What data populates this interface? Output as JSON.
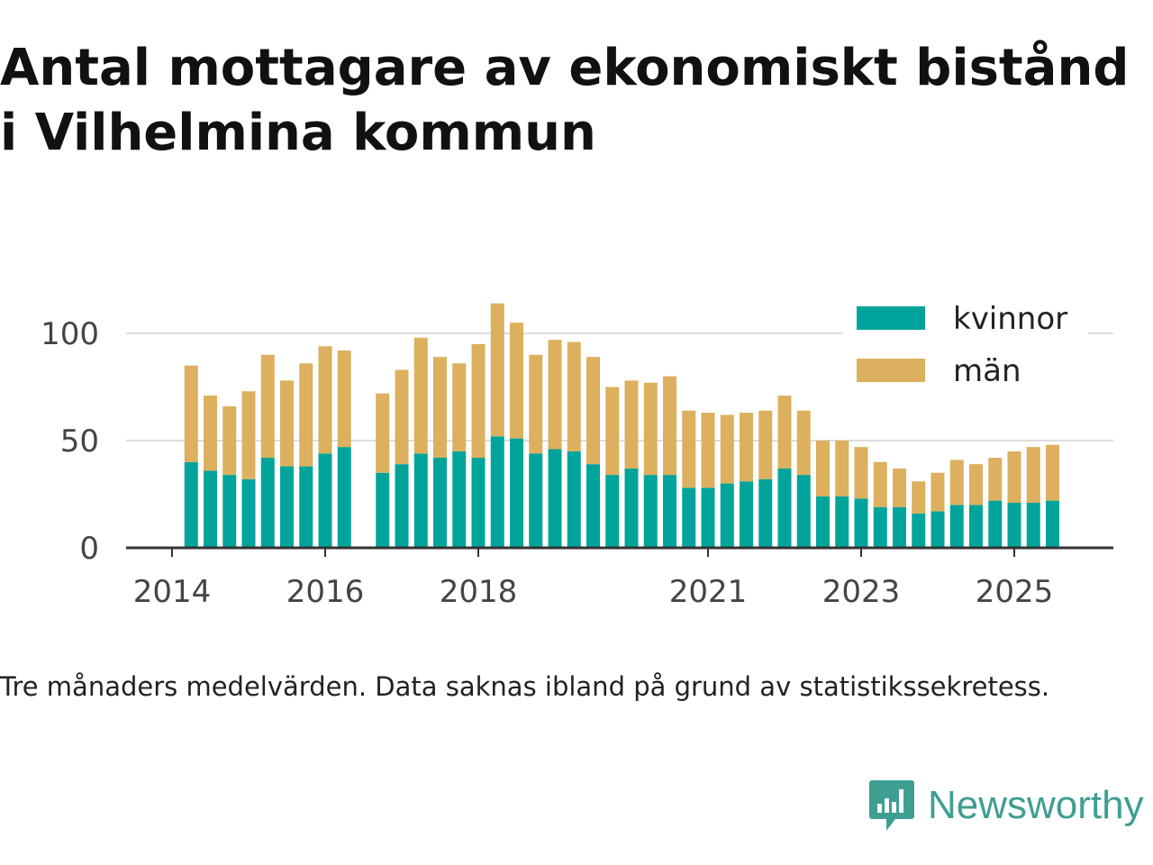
{
  "title": "Antal mottagare av ekonomiskt bistånd i Vilhelmina kommun",
  "footnote": "Tre månaders medelvärden. Data saknas ibland på grund av statistikssekretess.",
  "brand": {
    "name": "Newsworthy",
    "color": "#3f9e92"
  },
  "colors": {
    "kvinnor": "#00a49a",
    "man": "#dcb05e",
    "grid": "#dddddd",
    "axis": "#333333"
  },
  "chart_data": {
    "type": "bar",
    "stacked": true,
    "title": "Antal mottagare av ekonomiskt bistånd i Vilhelmina kommun",
    "xlabel": "",
    "ylabel": "",
    "ylim": [
      0,
      120
    ],
    "yticks": [
      0,
      50,
      100
    ],
    "xticks": [
      2014,
      2016,
      2018,
      2021,
      2023,
      2025
    ],
    "grid": true,
    "legend_position": "top-right",
    "x": [
      2014.25,
      2014.5,
      2014.75,
      2015.0,
      2015.25,
      2015.5,
      2015.75,
      2016.0,
      2016.25,
      2016.75,
      2017.0,
      2017.25,
      2017.5,
      2017.75,
      2018.0,
      2018.25,
      2018.5,
      2018.75,
      2019.0,
      2019.25,
      2019.5,
      2019.75,
      2020.0,
      2020.25,
      2020.5,
      2020.75,
      2021.0,
      2021.25,
      2021.5,
      2021.75,
      2022.0,
      2022.25,
      2022.5,
      2022.75,
      2023.0,
      2023.25,
      2023.5,
      2023.75,
      2024.0,
      2024.25,
      2024.5,
      2024.75,
      2025.0,
      2025.25,
      2025.5
    ],
    "series": [
      {
        "name": "kvinnor",
        "values": [
          40,
          36,
          34,
          32,
          42,
          38,
          38,
          44,
          47,
          35,
          39,
          44,
          42,
          45,
          42,
          52,
          51,
          44,
          46,
          45,
          39,
          34,
          37,
          34,
          34,
          28,
          28,
          30,
          31,
          32,
          37,
          34,
          24,
          24,
          23,
          19,
          19,
          16,
          17,
          20,
          20,
          22,
          21,
          21,
          22
        ]
      },
      {
        "name": "män",
        "values": [
          45,
          35,
          32,
          41,
          48,
          40,
          48,
          50,
          45,
          37,
          44,
          54,
          47,
          41,
          53,
          62,
          54,
          46,
          51,
          51,
          50,
          41,
          41,
          43,
          46,
          36,
          35,
          32,
          32,
          32,
          34,
          30,
          26,
          26,
          24,
          21,
          18,
          15,
          18,
          21,
          19,
          20,
          24,
          26,
          26
        ]
      }
    ]
  }
}
